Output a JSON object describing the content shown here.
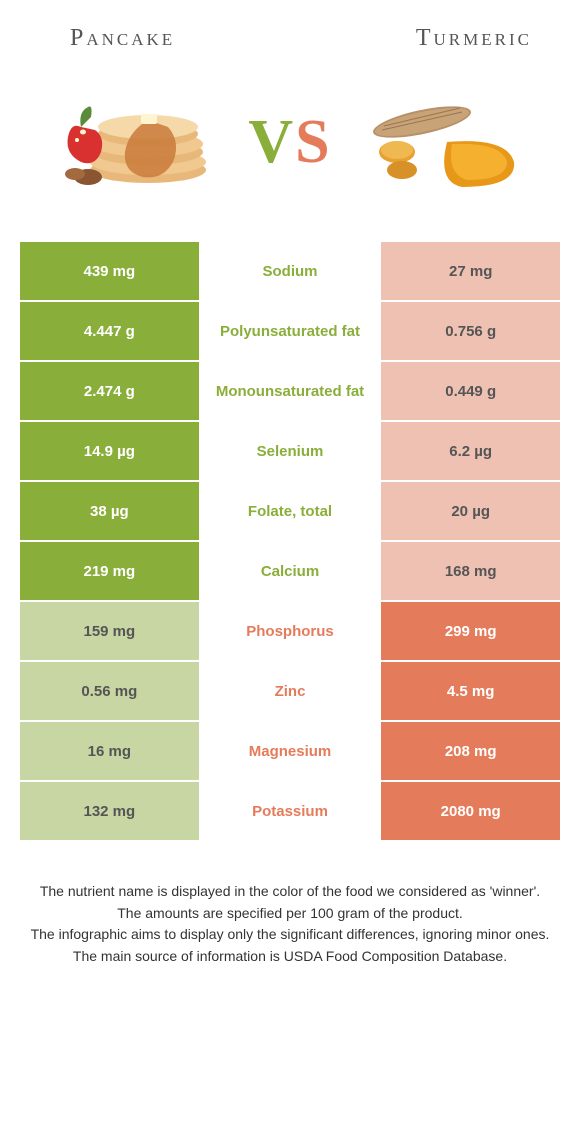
{
  "colors": {
    "green": "#8aae3a",
    "green_light": "#c7d6a3",
    "orange": "#e47c5b",
    "orange_light": "#eec1b3",
    "text_dark": "#555",
    "bg": "#ffffff"
  },
  "header": {
    "left": "Pancake",
    "right": "Turmeric"
  },
  "vs": {
    "v": "V",
    "s": "S"
  },
  "rows": [
    {
      "left": "439 mg",
      "mid": "Sodium",
      "right": "27 mg",
      "winner": "left"
    },
    {
      "left": "4.447 g",
      "mid": "Polyunsaturated fat",
      "right": "0.756 g",
      "winner": "left"
    },
    {
      "left": "2.474 g",
      "mid": "Monounsaturated fat",
      "right": "0.449 g",
      "winner": "left"
    },
    {
      "left": "14.9 µg",
      "mid": "Selenium",
      "right": "6.2 µg",
      "winner": "left"
    },
    {
      "left": "38 µg",
      "mid": "Folate, total",
      "right": "20 µg",
      "winner": "left"
    },
    {
      "left": "219 mg",
      "mid": "Calcium",
      "right": "168 mg",
      "winner": "left"
    },
    {
      "left": "159 mg",
      "mid": "Phosphorus",
      "right": "299 mg",
      "winner": "right"
    },
    {
      "left": "0.56 mg",
      "mid": "Zinc",
      "right": "4.5 mg",
      "winner": "right"
    },
    {
      "left": "16 mg",
      "mid": "Magnesium",
      "right": "208 mg",
      "winner": "right"
    },
    {
      "left": "132 mg",
      "mid": "Potassium",
      "right": "2080 mg",
      "winner": "right"
    }
  ],
  "footer": {
    "line1": "The nutrient name is displayed in the color of the food we considered as 'winner'.",
    "line2": "The amounts are specified per 100 gram of the product.",
    "line3": "The infographic aims to display only the significant differences, ignoring minor ones.",
    "line4": "The main source of information is USDA Food Composition Database."
  }
}
